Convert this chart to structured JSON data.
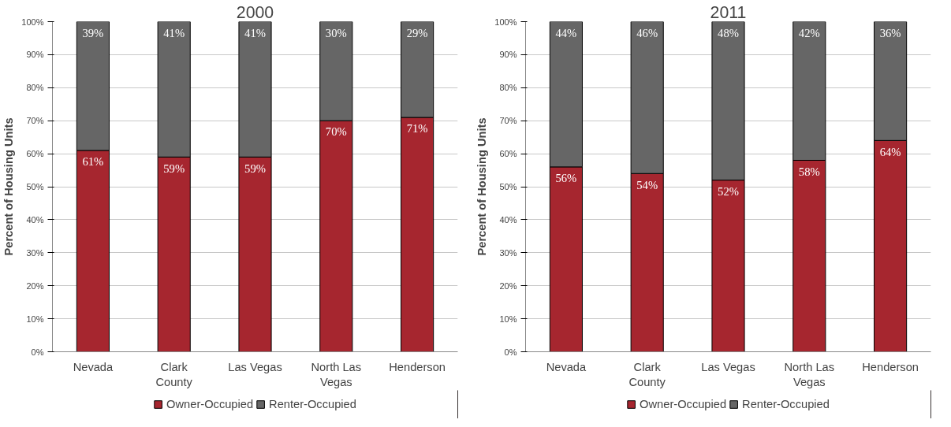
{
  "chart_data": [
    {
      "type": "bar",
      "title": "2000",
      "ylabel": "Percent of Housing Units",
      "stacked": true,
      "grid": "y",
      "legend": "bottom",
      "categories": [
        "Nevada",
        "Clark County",
        "Las Vegas",
        "North Las Vegas",
        "Henderson"
      ],
      "ylim": [
        0,
        100
      ],
      "yticks": [
        {
          "value": 0,
          "label": "0%"
        },
        {
          "value": 10,
          "label": "10%"
        },
        {
          "value": 20,
          "label": "20%"
        },
        {
          "value": 30,
          "label": "30%"
        },
        {
          "value": 40,
          "label": "40%"
        },
        {
          "value": 50,
          "label": "50%"
        },
        {
          "value": 60,
          "label": "60%"
        },
        {
          "value": 70,
          "label": "70%"
        },
        {
          "value": 80,
          "label": "80%"
        },
        {
          "value": 90,
          "label": "90%"
        },
        {
          "value": 100,
          "label": "100%"
        }
      ],
      "series": [
        {
          "name": "Owner-Occupied",
          "color": "#a6262f",
          "values": [
            61,
            59,
            59,
            70,
            71
          ],
          "value_labels": [
            "61%",
            "59%",
            "59%",
            "70%",
            "71%"
          ]
        },
        {
          "name": "Renter-Occupied",
          "color": "#666666",
          "values": [
            39,
            41,
            41,
            30,
            29
          ],
          "value_labels": [
            "39%",
            "41%",
            "41%",
            "30%",
            "29%"
          ]
        }
      ]
    },
    {
      "type": "bar",
      "title": "2011",
      "ylabel": "Percent of Housing Units",
      "stacked": true,
      "grid": "y",
      "legend": "bottom",
      "categories": [
        "Nevada",
        "Clark County",
        "Las Vegas",
        "North Las Vegas",
        "Henderson"
      ],
      "ylim": [
        0,
        100
      ],
      "yticks": [
        {
          "value": 0,
          "label": "0%"
        },
        {
          "value": 10,
          "label": "10%"
        },
        {
          "value": 20,
          "label": "20%"
        },
        {
          "value": 30,
          "label": "30%"
        },
        {
          "value": 40,
          "label": "40%"
        },
        {
          "value": 50,
          "label": "50%"
        },
        {
          "value": 60,
          "label": "60%"
        },
        {
          "value": 70,
          "label": "70%"
        },
        {
          "value": 80,
          "label": "80%"
        },
        {
          "value": 90,
          "label": "90%"
        },
        {
          "value": 100,
          "label": "100%"
        }
      ],
      "series": [
        {
          "name": "Owner-Occupied",
          "color": "#a6262f",
          "values": [
            56,
            54,
            52,
            58,
            64
          ],
          "value_labels": [
            "56%",
            "54%",
            "52%",
            "58%",
            "64%"
          ]
        },
        {
          "name": "Renter-Occupied",
          "color": "#666666",
          "values": [
            44,
            46,
            48,
            42,
            36
          ],
          "value_labels": [
            "44%",
            "46%",
            "48%",
            "42%",
            "36%"
          ]
        }
      ]
    }
  ]
}
